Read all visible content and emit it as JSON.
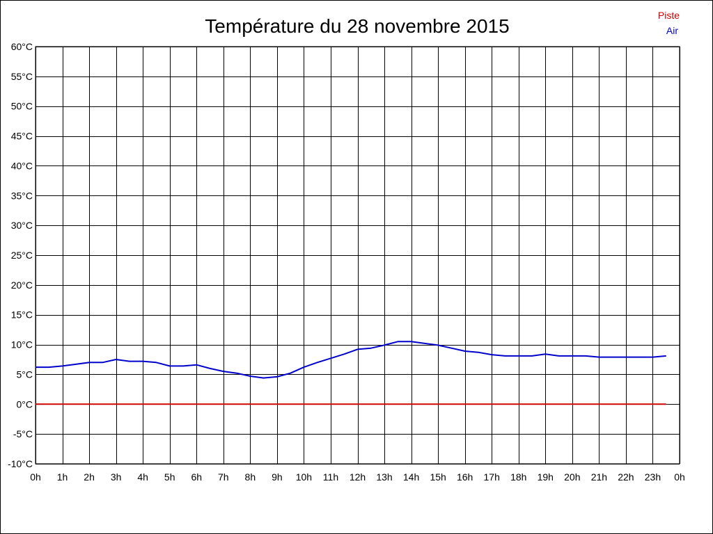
{
  "chart_data": {
    "type": "line",
    "title": "Température du 28 novembre 2015",
    "xlabel": "",
    "ylabel": "",
    "x_unit": "hour",
    "xlim": [
      0,
      24
    ],
    "ylim": [
      -10,
      60
    ],
    "x_ticks": [
      0,
      1,
      2,
      3,
      4,
      5,
      6,
      7,
      8,
      9,
      10,
      11,
      12,
      13,
      14,
      15,
      16,
      17,
      18,
      19,
      20,
      21,
      22,
      23,
      24
    ],
    "x_tick_labels": [
      "0h",
      "1h",
      "2h",
      "3h",
      "4h",
      "5h",
      "6h",
      "7h",
      "8h",
      "9h",
      "10h",
      "11h",
      "12h",
      "13h",
      "14h",
      "15h",
      "16h",
      "17h",
      "18h",
      "19h",
      "20h",
      "21h",
      "22h",
      "23h",
      "0h"
    ],
    "y_ticks": [
      60,
      55,
      50,
      45,
      40,
      35,
      30,
      25,
      20,
      15,
      10,
      5,
      0,
      -5,
      -10
    ],
    "y_tick_labels": [
      "60°C",
      "55°C",
      "50°C",
      "45°C",
      "40°C",
      "35°C",
      "30°C",
      "25°C",
      "20°C",
      "15°C",
      "10°C",
      "5°C",
      "0°C",
      "-5°C",
      "-10°C"
    ],
    "grid": true,
    "legend_position": "top-right",
    "series": [
      {
        "name": "Piste",
        "color": "#cc0000",
        "x": [
          0,
          23.5
        ],
        "y": [
          0,
          0
        ]
      },
      {
        "name": "Air",
        "color": "#0000cc",
        "x": [
          0,
          0.5,
          1,
          1.5,
          2,
          2.5,
          3,
          3.5,
          4,
          4.5,
          5,
          5.5,
          6,
          6.5,
          7,
          7.5,
          8,
          8.5,
          9,
          9.5,
          10,
          10.5,
          11,
          11.5,
          12,
          12.5,
          13,
          13.5,
          14,
          14.5,
          15,
          15.5,
          16,
          16.5,
          17,
          17.5,
          18,
          18.5,
          19,
          19.5,
          20,
          20.5,
          21,
          21.5,
          22,
          22.5,
          23,
          23.5
        ],
        "y": [
          6.2,
          6.2,
          6.4,
          6.7,
          7.0,
          7.0,
          7.5,
          7.2,
          7.2,
          7.0,
          6.4,
          6.4,
          6.6,
          6.0,
          5.5,
          5.2,
          4.7,
          4.4,
          4.6,
          5.2,
          6.2,
          7.0,
          7.7,
          8.4,
          9.2,
          9.4,
          9.9,
          10.5,
          10.5,
          10.2,
          9.9,
          9.4,
          8.9,
          8.7,
          8.3,
          8.1,
          8.1,
          8.1,
          8.4,
          8.1,
          8.1,
          8.1,
          7.9,
          7.9,
          7.9,
          7.9,
          7.9,
          8.1
        ]
      }
    ]
  }
}
